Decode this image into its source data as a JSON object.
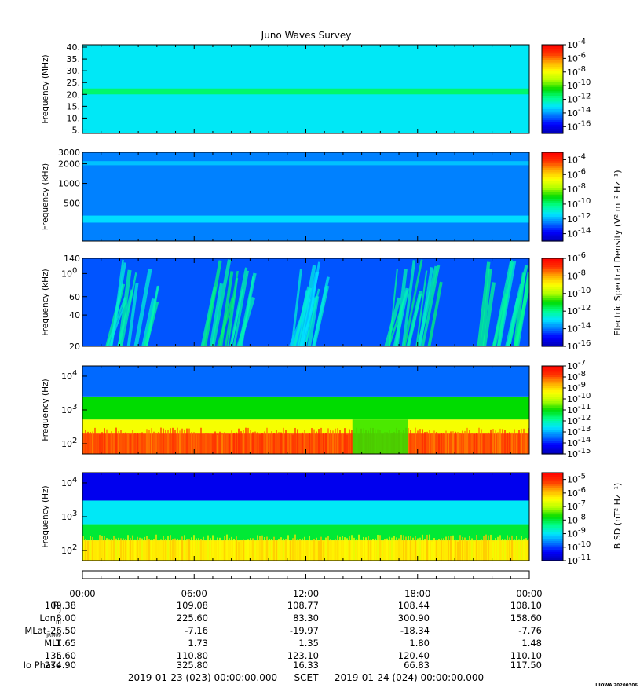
{
  "title": "Juno Waves Survey",
  "footer": {
    "start": "2019-01-23 (023) 00:00:00.000",
    "axis": "SCET",
    "end": "2019-01-24 (024) 00:00:00.000",
    "credit": "UIOWA 20200306"
  },
  "side_labels": {
    "electric": "Electric Spectral Density (V² m⁻² Hz⁻¹)",
    "magnetic": "B SD (nT² Hz⁻¹)"
  },
  "time_ticks": [
    "00:00",
    "06:00",
    "12:00",
    "18:00",
    "00:00"
  ],
  "ephemeris": [
    {
      "label": "RJ",
      "values": [
        "109.38",
        "109.08",
        "108.77",
        "108.44",
        "108.10"
      ]
    },
    {
      "label": "LonIII",
      "values": [
        "8.00",
        "225.60",
        "83.30",
        "300.90",
        "158.60"
      ]
    },
    {
      "label": "MLatJRM09",
      "values": [
        "-26.50",
        "-7.16",
        "-19.97",
        "-18.34",
        "-7.76"
      ]
    },
    {
      "label": "MLT",
      "values": [
        "1.65",
        "1.73",
        "1.35",
        "1.80",
        "1.48"
      ]
    },
    {
      "label": "L",
      "values": [
        "136.60",
        "110.80",
        "123.10",
        "120.40",
        "110.10"
      ]
    },
    {
      "label": "Io Phase",
      "values": [
        "274.90",
        "325.80",
        "16.33",
        "66.83",
        "117.50"
      ]
    }
  ],
  "colors": {
    "colormap": [
      "#0000b4",
      "#0000ff",
      "#0078ff",
      "#00e6ff",
      "#00ff8c",
      "#00dc00",
      "#b4ff00",
      "#ffff00",
      "#ffaa00",
      "#ff3200",
      "#ff0000"
    ],
    "frame": "#000000"
  },
  "chart_data": [
    {
      "type": "heatmap",
      "panel": "HFR high band",
      "ylabel": "Frequency (MHz)",
      "ylim": [
        3.5,
        41
      ],
      "yscale": "linear",
      "yticks": [
        "5.",
        "10.",
        "15.",
        "20.",
        "25.",
        "30.",
        "35.",
        "40."
      ],
      "ytick_values": [
        5,
        10,
        15,
        20,
        25,
        30,
        35,
        40
      ],
      "xlim_hours": [
        0,
        24
      ],
      "colorbar": {
        "labels": [
          "10-4",
          "10-6",
          "10-8",
          "10-10",
          "10-12",
          "10-14",
          "10-16"
        ],
        "range_exp": [
          -17,
          -4
        ]
      },
      "features": [
        {
          "kind": "background",
          "level_exp": -13
        },
        {
          "kind": "band",
          "freq_range": [
            20,
            22.5
          ],
          "level_exp": -11.5
        }
      ]
    },
    {
      "type": "heatmap",
      "panel": "HFR low band",
      "ylabel": "Frequency (kHz)",
      "ylim": [
        130,
        3000
      ],
      "yscale": "log",
      "yticks": [
        "3000",
        "2000",
        "1000",
        "500"
      ],
      "ytick_values": [
        3000,
        2000,
        1000,
        500
      ],
      "xlim_hours": [
        0,
        24
      ],
      "colorbar": {
        "labels": [
          "10-4",
          "10-6",
          "10-8",
          "10-10",
          "10-12",
          "10-14"
        ],
        "range_exp": [
          -15,
          -3
        ]
      },
      "features": [
        {
          "kind": "background",
          "level_exp": -12.5
        },
        {
          "kind": "band",
          "freq_range": [
            1900,
            2200
          ],
          "level_exp": -11.8
        },
        {
          "kind": "band",
          "freq_range": [
            250,
            320
          ],
          "level_exp": -11.5
        }
      ]
    },
    {
      "type": "heatmap",
      "panel": "LFR high",
      "ylabel": "Frequency (kHz)",
      "ylim": [
        20,
        140
      ],
      "yscale": "log",
      "yticks": [
        "140",
        "100",
        "60",
        "40",
        "20"
      ],
      "ytick_values": [
        140,
        100,
        60,
        40,
        20
      ],
      "xlim_hours": [
        0,
        24
      ],
      "colorbar": {
        "labels": [
          "10-6",
          "10-8",
          "10-10",
          "10-12",
          "10-14",
          "10-16"
        ],
        "range_exp": [
          -16,
          -6
        ]
      },
      "features": [
        {
          "kind": "background",
          "level_exp": -14.3
        },
        {
          "kind": "emission",
          "time_range_hours": [
            1.2,
            3.6
          ],
          "level_exp": -12.8
        },
        {
          "kind": "emission",
          "time_range_hours": [
            6.4,
            8.6
          ],
          "level_exp": -12.5
        },
        {
          "kind": "emission",
          "time_range_hours": [
            11.0,
            12.6
          ],
          "level_exp": -13.2
        },
        {
          "kind": "emission",
          "time_range_hours": [
            16.3,
            19.2
          ],
          "level_exp": -12.6
        },
        {
          "kind": "emission",
          "time_range_hours": [
            21.2,
            23.4
          ],
          "level_exp": -12.6
        }
      ]
    },
    {
      "type": "heatmap",
      "panel": "LFR low",
      "ylabel": "Frequency (Hz)",
      "ylim": [
        50,
        20000
      ],
      "yscale": "log",
      "yticks": [
        "104",
        "103",
        "102"
      ],
      "ytick_values": [
        10000,
        1000,
        100
      ],
      "xlim_hours": [
        0,
        24
      ],
      "colorbar": {
        "labels": [
          "10-7",
          "10-8",
          "10-9",
          "10-10",
          "10-11",
          "10-12",
          "10-13",
          "10-14",
          "10-15"
        ],
        "range_exp": [
          -15,
          -7
        ]
      },
      "features": [
        {
          "kind": "layer",
          "freq_range": [
            50,
            200
          ],
          "level_exp": -8
        },
        {
          "kind": "layer",
          "freq_range": [
            200,
            520
          ],
          "level_exp": -9.5
        },
        {
          "kind": "layer",
          "freq_range": [
            520,
            2500
          ],
          "level_exp": -11
        },
        {
          "kind": "layer",
          "freq_range": [
            2500,
            20000
          ],
          "level_exp": -13.5
        },
        {
          "kind": "gap",
          "time_range_hours": [
            14.5,
            17.5
          ],
          "level_exp": -10.8
        }
      ]
    },
    {
      "type": "heatmap",
      "panel": "Magnetic",
      "ylabel": "Frequency (Hz)",
      "ylim": [
        50,
        20000
      ],
      "yscale": "log",
      "yticks": [
        "104",
        "103",
        "102"
      ],
      "ytick_values": [
        10000,
        1000,
        100
      ],
      "xlim_hours": [
        0,
        24
      ],
      "colorbar": {
        "labels": [
          "10-5",
          "10-6",
          "10-7",
          "10-8",
          "10-9",
          "10-10",
          "10-11"
        ],
        "range_exp": [
          -11,
          -4.5
        ]
      },
      "features": [
        {
          "kind": "layer",
          "freq_range": [
            50,
            200
          ],
          "level_exp": -6.3
        },
        {
          "kind": "layer",
          "freq_range": [
            200,
            600
          ],
          "level_exp": -8
        },
        {
          "kind": "layer",
          "freq_range": [
            600,
            3000
          ],
          "level_exp": -9
        },
        {
          "kind": "layer",
          "freq_range": [
            3000,
            20000
          ],
          "level_exp": -10.5
        }
      ]
    }
  ]
}
